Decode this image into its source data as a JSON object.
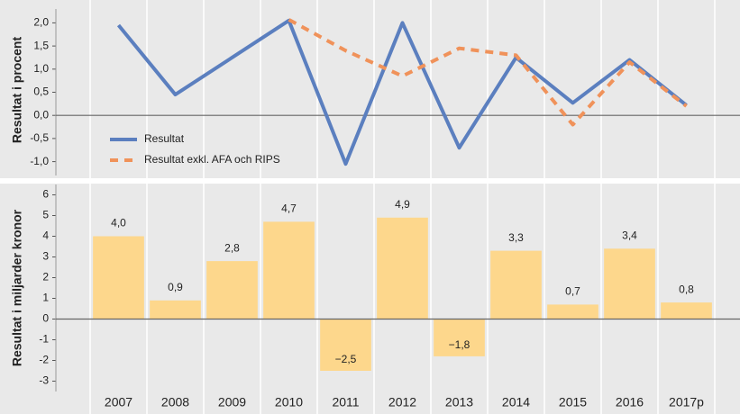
{
  "chart_data": [
    {
      "type": "line",
      "ylabel": "Resultat i procent",
      "ylim": [
        -1.3,
        2.3
      ],
      "yticks": [
        {
          "value": 2,
          "label": "2,0"
        },
        {
          "value": 1.5,
          "label": "1,5"
        },
        {
          "value": 1,
          "label": "1,0"
        },
        {
          "value": 0.5,
          "label": "0,5"
        },
        {
          "value": 0,
          "label": "0,0"
        },
        {
          "value": -0.5,
          "label": "-0,5"
        },
        {
          "value": -1,
          "label": "-1,0"
        }
      ],
      "legend": "lower left",
      "series": [
        {
          "name": "Resultat",
          "color": "#5b7fbf",
          "dashed": false,
          "values": [
            1.95,
            0.45,
            1.25,
            2.05,
            -1.05,
            2.0,
            -0.7,
            1.25,
            0.27,
            1.2,
            0.22
          ]
        },
        {
          "name": "Resultat exkl. AFA och RIPS",
          "color": "#f0925a",
          "dashed": true,
          "values": [
            null,
            null,
            null,
            2.07,
            1.4,
            0.85,
            1.45,
            1.3,
            -0.2,
            1.15,
            0.2
          ]
        }
      ]
    },
    {
      "type": "bar",
      "ylabel": "Resultat i miljarder kronor",
      "categories": [
        "2007",
        "2008",
        "2009",
        "2010",
        "2011",
        "2012",
        "2013",
        "2014",
        "2015",
        "2016",
        "2017p"
      ],
      "values": [
        4.0,
        0.9,
        2.8,
        4.7,
        -2.5,
        4.9,
        -1.8,
        3.3,
        0.7,
        3.4,
        0.8
      ],
      "value_labels": [
        "4,0",
        "0,9",
        "2,8",
        "4,7",
        "−2,5",
        "4,9",
        "−1,8",
        "3,3",
        "0,7",
        "3,4",
        "0,8"
      ],
      "color": "#fdd78c",
      "ylim": [
        -3.5,
        6.5
      ],
      "yticks": [
        6,
        5,
        4,
        3,
        2,
        1,
        0,
        {
          "value": -1,
          "label": "-1"
        },
        {
          "value": -2,
          "label": "-2"
        },
        {
          "value": -3,
          "label": "-3"
        }
      ]
    }
  ]
}
